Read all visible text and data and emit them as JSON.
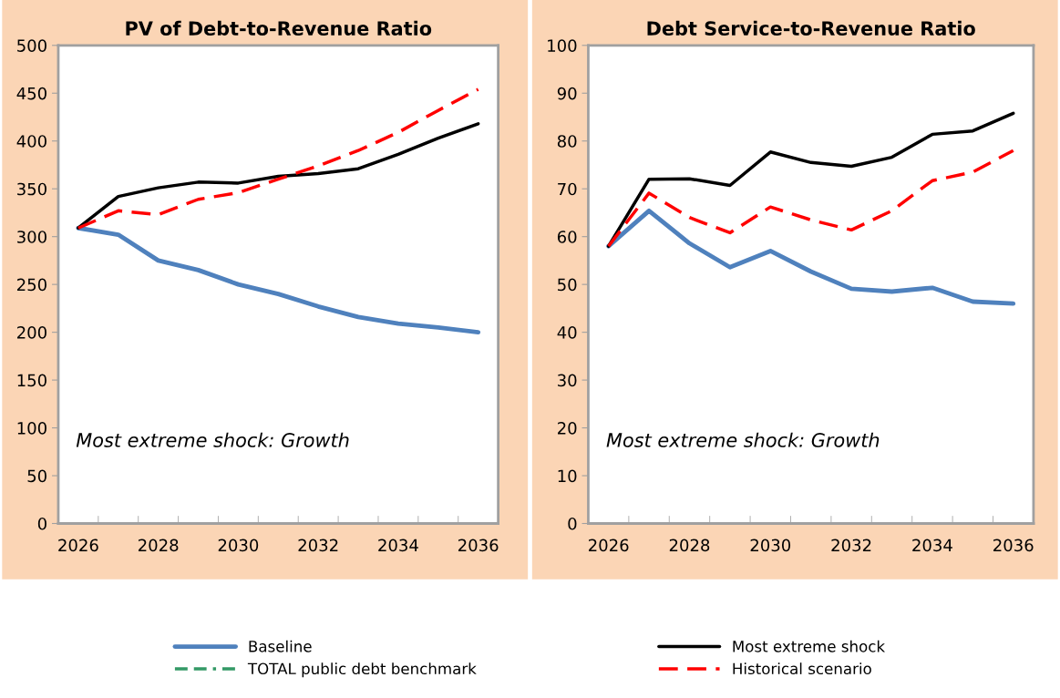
{
  "chart_data": [
    {
      "type": "line",
      "title": "PV of Debt-to-Revenue Ratio",
      "categories": [
        "2026",
        null,
        "2028",
        null,
        "2030",
        null,
        "2032",
        null,
        "2034",
        null,
        "2036"
      ],
      "series": [
        {
          "name": "Baseline",
          "color": "#4f81bd",
          "line_style": "solid",
          "values": [
            309,
            302,
            275,
            265,
            250,
            240,
            227,
            216,
            209,
            205,
            200
          ]
        },
        {
          "name": "TOTAL public debt benchmark",
          "color": "#339966",
          "line_style": "dashdot",
          "values": [
            null,
            null,
            null,
            null,
            null,
            null,
            null,
            null,
            null,
            null,
            null
          ]
        },
        {
          "name": "Most extreme shock",
          "color": "#000000",
          "line_style": "solid",
          "values": [
            309,
            342,
            351,
            357,
            356,
            363,
            366,
            371,
            386,
            403,
            418
          ]
        },
        {
          "name": "Historical scenario",
          "color": "#ff0000",
          "line_style": "dashed",
          "values": [
            309,
            327,
            323,
            339,
            346,
            360,
            374,
            390,
            409,
            432,
            454
          ]
        }
      ],
      "ylim": [
        0,
        500
      ],
      "yticks": [
        0,
        50,
        100,
        150,
        200,
        250,
        300,
        350,
        400,
        450,
        500
      ],
      "annotations": [
        "Most extreme shock: Growth"
      ],
      "grid": false,
      "legend": "bottom",
      "marker": "none"
    },
    {
      "type": "line",
      "title": "Debt Service-to-Revenue Ratio",
      "categories": [
        "2026",
        null,
        "2028",
        null,
        "2030",
        null,
        "2032",
        null,
        "2034",
        null,
        "2036"
      ],
      "series": [
        {
          "color": "#4f81bd",
          "line_style": "solid",
          "values": [
            58,
            65.4,
            58.6,
            53.6,
            57,
            52.7,
            49.1,
            48.5,
            49.3,
            46.4,
            46
          ]
        },
        {
          "color": "#000000",
          "line_style": "solid",
          "values": [
            58,
            72,
            72.1,
            70.7,
            77.7,
            75.5,
            74.7,
            76.6,
            81.4,
            82.1,
            85.8
          ]
        },
        {
          "color": "#ff0000",
          "line_style": "dashed",
          "values": [
            58,
            69.1,
            64,
            60.8,
            66.2,
            63.5,
            61.4,
            65.4,
            71.7,
            73.5,
            78
          ]
        }
      ],
      "ylim": [
        0,
        100
      ],
      "yticks": [
        0,
        10,
        20,
        30,
        40,
        50,
        60,
        70,
        80,
        90,
        100
      ],
      "annotations": [
        "Most extreme shock: Growth"
      ],
      "grid": false,
      "marker": "none"
    }
  ]
}
